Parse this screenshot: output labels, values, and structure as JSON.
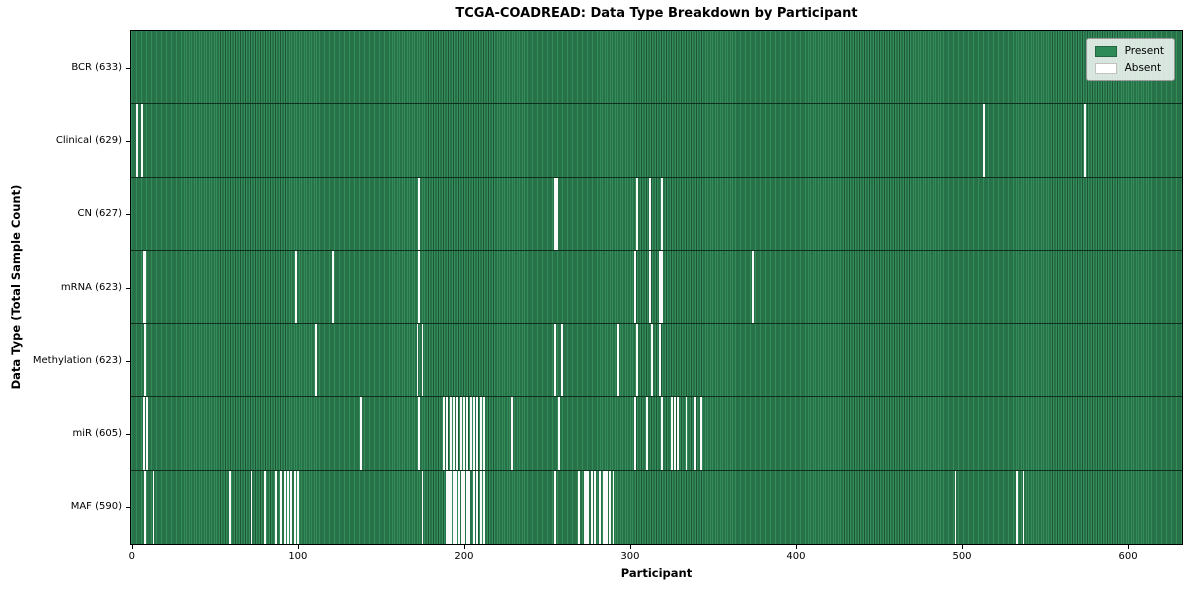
{
  "chart_data": {
    "type": "heatmap",
    "title": "TCGA-COADREAD: Data Type Breakdown by Participant",
    "xlabel": "Participant",
    "ylabel": "Data Type (Total Sample Count)",
    "x_ticks": [
      0,
      100,
      200,
      300,
      400,
      500,
      600
    ],
    "xlim": [
      0,
      633
    ],
    "n_participants": 633,
    "grid": false,
    "present_color": "#2e8b57",
    "absent_color": "#ffffff",
    "legend": {
      "position": "upper right",
      "entries": [
        {
          "label": "Present",
          "color": "#2e8b57"
        },
        {
          "label": "Absent",
          "color": "#ffffff"
        }
      ]
    },
    "rows": [
      {
        "name": "BCR",
        "label": "BCR (633)",
        "total": 633,
        "absent_participants": []
      },
      {
        "name": "Clinical",
        "label": "Clinical (629)",
        "total": 629,
        "absent_participants": [
          3,
          6,
          513,
          574
        ]
      },
      {
        "name": "CN",
        "label": "CN (627)",
        "total": 627,
        "absent_participants": [
          173,
          255,
          256,
          304,
          312,
          319
        ]
      },
      {
        "name": "mRNA",
        "label": "mRNA (623)",
        "total": 623,
        "absent_participants": [
          7,
          8,
          99,
          121,
          173,
          303,
          312,
          318,
          319,
          374
        ]
      },
      {
        "name": "Methylation",
        "label": "Methylation (623)",
        "total": 623,
        "absent_participants": [
          8,
          111,
          172,
          175,
          255,
          259,
          293,
          304,
          313,
          318
        ]
      },
      {
        "name": "miR",
        "label": "miR (605)",
        "total": 605,
        "absent_participants": [
          7,
          9,
          138,
          173,
          188,
          190,
          192,
          194,
          196,
          198,
          200,
          202,
          204,
          206,
          208,
          210,
          212,
          229,
          257,
          303,
          310,
          319,
          325,
          327,
          329,
          334,
          339,
          343
        ]
      },
      {
        "name": "MAF",
        "label": "MAF (590)",
        "total": 590,
        "absent_participants": [
          8,
          13,
          59,
          72,
          80,
          87,
          90,
          92,
          94,
          96,
          98,
          100,
          175,
          190,
          191,
          192,
          194,
          195,
          197,
          199,
          200,
          202,
          203,
          206,
          208,
          210,
          212,
          255,
          269,
          273,
          274,
          275,
          277,
          279,
          282,
          284,
          285,
          286,
          288,
          290,
          496,
          533,
          537
        ]
      }
    ]
  }
}
